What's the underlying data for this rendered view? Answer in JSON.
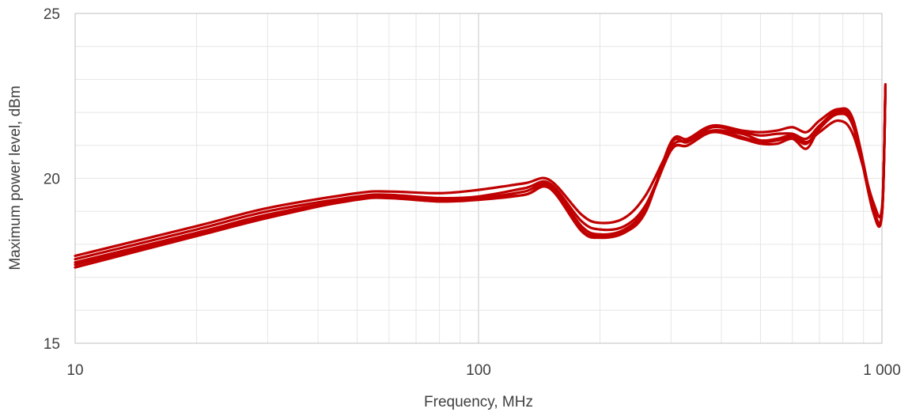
{
  "chart_data": {
    "type": "line",
    "title": "",
    "xlabel": "Frequency, MHz",
    "ylabel": "Maximum power level, dBm",
    "x_scale": "log",
    "xlim": [
      10,
      1000
    ],
    "ylim": [
      15,
      25
    ],
    "x_ticks": [
      {
        "value": 10,
        "label": "10"
      },
      {
        "value": 100,
        "label": "100"
      },
      {
        "value": 1000,
        "label": "1 000"
      }
    ],
    "y_ticks": [
      {
        "value": 15,
        "label": "15"
      },
      {
        "value": 20,
        "label": "20"
      },
      {
        "value": 25,
        "label": "25"
      }
    ],
    "grid": true,
    "legend": "none",
    "line_color": "#c00000",
    "x": [
      10,
      20,
      30,
      50,
      60,
      80,
      100,
      130,
      150,
      180,
      200,
      230,
      260,
      300,
      330,
      380,
      450,
      500,
      550,
      600,
      650,
      700,
      780,
      850,
      950,
      1000,
      1020
    ],
    "series": [
      {
        "values": [
          17.65,
          18.55,
          19.1,
          19.55,
          19.6,
          19.55,
          19.65,
          19.85,
          19.95,
          18.9,
          18.65,
          18.8,
          19.5,
          20.95,
          21.15,
          21.45,
          21.35,
          21.15,
          21.2,
          21.3,
          21.1,
          21.4,
          21.75,
          21.3,
          19.3,
          19.1,
          22.6
        ]
      },
      {
        "values": [
          17.55,
          18.45,
          19.0,
          19.45,
          19.5,
          19.4,
          19.45,
          19.7,
          19.85,
          18.7,
          18.45,
          18.55,
          19.2,
          20.85,
          21.0,
          21.4,
          21.2,
          21.05,
          21.05,
          21.2,
          20.9,
          21.5,
          21.95,
          21.55,
          19.1,
          18.95,
          22.7
        ]
      },
      {
        "values": [
          17.45,
          18.35,
          18.9,
          19.4,
          19.45,
          19.35,
          19.4,
          19.6,
          19.8,
          18.55,
          18.3,
          18.45,
          19.1,
          20.85,
          21.0,
          21.45,
          21.25,
          21.1,
          21.15,
          21.25,
          21.05,
          21.55,
          22.0,
          21.6,
          19.0,
          18.9,
          22.75
        ]
      },
      {
        "values": [
          17.38,
          18.3,
          18.85,
          19.35,
          19.4,
          19.3,
          19.35,
          19.5,
          19.75,
          18.45,
          18.25,
          18.4,
          19.05,
          21.05,
          21.1,
          21.55,
          21.4,
          21.3,
          21.35,
          21.35,
          21.2,
          21.6,
          22.05,
          21.7,
          19.05,
          18.9,
          22.8
        ]
      },
      {
        "values": [
          17.3,
          18.25,
          18.8,
          19.38,
          19.42,
          19.3,
          19.38,
          19.5,
          19.7,
          18.4,
          18.2,
          18.35,
          19.0,
          21.1,
          21.2,
          21.6,
          21.45,
          21.4,
          21.45,
          21.55,
          21.4,
          21.75,
          22.1,
          21.75,
          19.15,
          18.95,
          22.85
        ]
      }
    ]
  }
}
